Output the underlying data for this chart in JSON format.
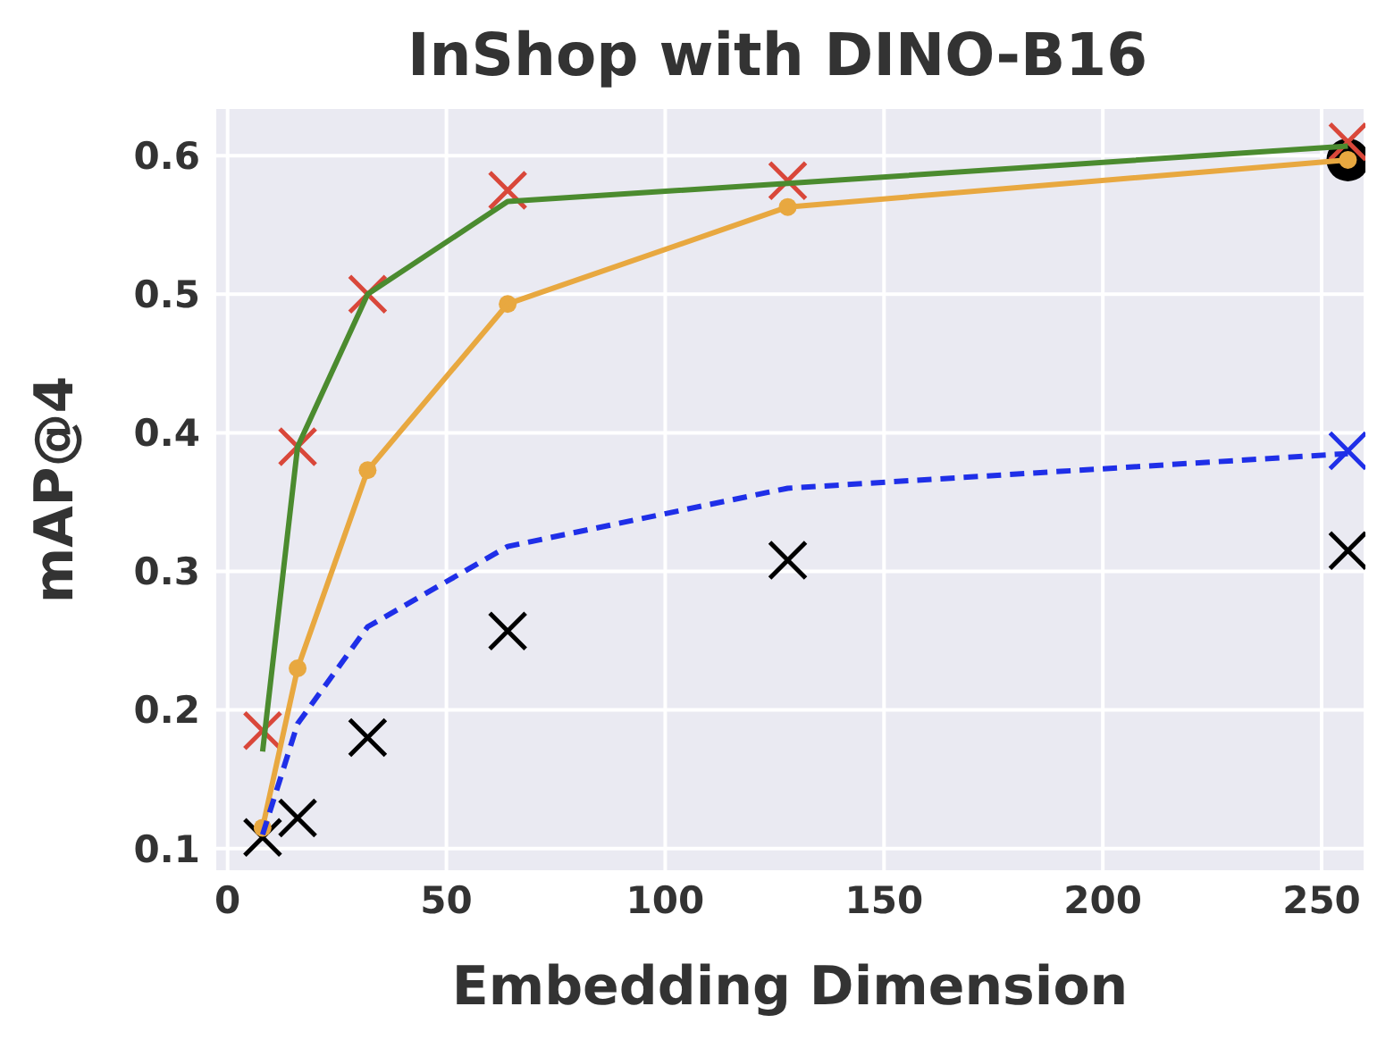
{
  "chart_data": {
    "type": "line",
    "title": "InShop with DINO-B16",
    "xlabel": "Embedding Dimension",
    "ylabel": "mAP@4",
    "xlim": [
      -3,
      260
    ],
    "xticks": [
      0,
      50,
      100,
      150,
      200,
      250
    ],
    "ylim": [
      0.083,
      0.635
    ],
    "yticks": [
      0.1,
      0.2,
      0.3,
      0.4,
      0.5,
      0.6
    ],
    "grid": true,
    "series": [
      {
        "color": "#4b8b2f",
        "marker": "none",
        "line_style": "solid",
        "x": [
          8,
          16,
          32,
          64,
          128,
          256
        ],
        "values": [
          0.17,
          0.39,
          0.5,
          0.567,
          0.58,
          0.607
        ]
      },
      {
        "color": "#e8a840",
        "marker": "circle",
        "line_style": "solid",
        "x": [
          8,
          16,
          32,
          64,
          128,
          256
        ],
        "values": [
          0.115,
          0.23,
          0.373,
          0.493,
          0.563,
          0.597
        ]
      },
      {
        "color": "#1f2fe8",
        "marker": "none",
        "line_style": "dashed",
        "x": [
          8,
          16,
          32,
          64,
          128,
          256
        ],
        "values": [
          0.11,
          0.19,
          0.26,
          0.318,
          0.36,
          0.385
        ]
      },
      {
        "type": "scatter",
        "color": "#d9473a",
        "marker": "cross",
        "x": [
          8,
          16,
          32,
          64,
          128,
          256
        ],
        "values": [
          0.185,
          0.39,
          0.5,
          0.575,
          0.582,
          0.61
        ]
      },
      {
        "type": "scatter",
        "color": "#1f2fe8",
        "marker": "cross",
        "x": [
          256
        ],
        "values": [
          0.387
        ]
      },
      {
        "type": "scatter",
        "color": "#000000",
        "marker": "cross",
        "x": [
          8,
          16,
          32,
          64,
          128,
          256
        ],
        "values": [
          0.108,
          0.122,
          0.18,
          0.257,
          0.308,
          0.315
        ]
      },
      {
        "type": "scatter",
        "color": "#000000",
        "marker": "circle",
        "x": [
          256
        ],
        "values": [
          0.597
        ]
      }
    ]
  }
}
